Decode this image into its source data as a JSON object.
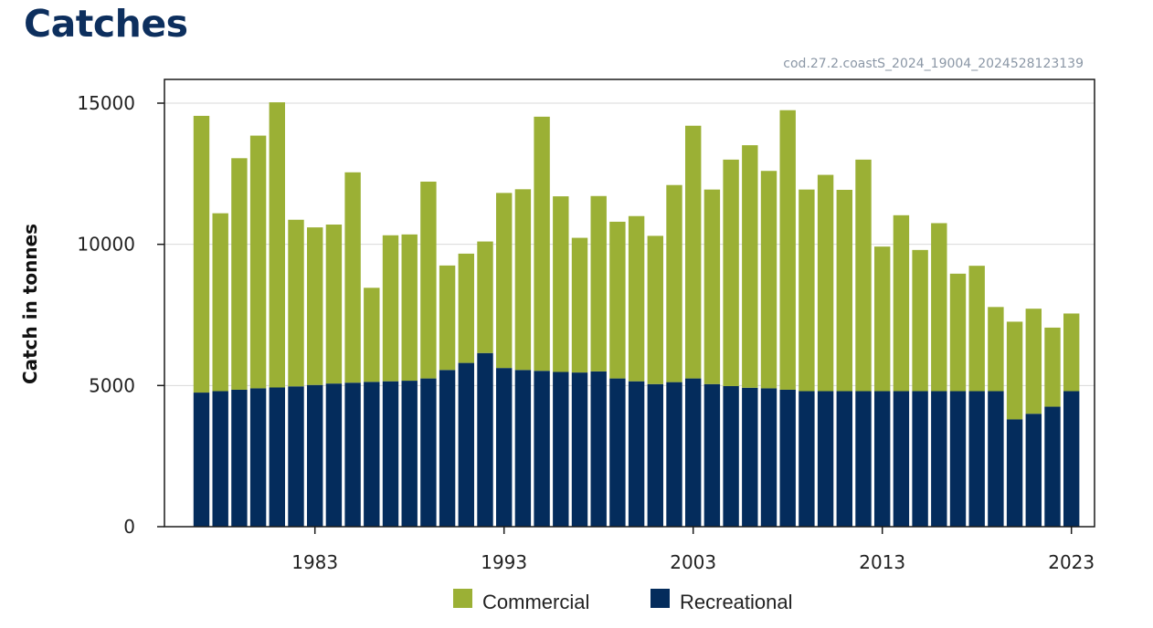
{
  "header": {
    "title": "Catches",
    "source_id": "cod.27.2.coastS_2024_19004_2024528123139"
  },
  "colors": {
    "commercial": "#9bb035",
    "recreational": "#042c5c",
    "title": "#0d2f5e",
    "grid": "#d9d9d9"
  },
  "chart_data": {
    "type": "bar",
    "stacked": true,
    "title": "",
    "xlabel": "",
    "ylabel": "Catch in tonnes",
    "ylim": [
      0,
      16000
    ],
    "yticks": [
      0,
      5000,
      10000,
      15000
    ],
    "xticks": [
      1983,
      1993,
      2003,
      2013,
      2023
    ],
    "grid": "horizontal",
    "legend_position": "bottom",
    "categories": [
      1977,
      1978,
      1979,
      1980,
      1981,
      1982,
      1983,
      1984,
      1985,
      1986,
      1987,
      1988,
      1989,
      1990,
      1991,
      1992,
      1993,
      1994,
      1995,
      1996,
      1997,
      1998,
      1999,
      2000,
      2001,
      2002,
      2003,
      2004,
      2005,
      2006,
      2007,
      2008,
      2009,
      2010,
      2011,
      2012,
      2013,
      2014,
      2015,
      2016,
      2017,
      2018,
      2019,
      2020,
      2021,
      2022,
      2023
    ],
    "series": [
      {
        "name": "Recreational",
        "values": [
          4750,
          4800,
          4850,
          4900,
          4930,
          4970,
          5020,
          5070,
          5100,
          5130,
          5150,
          5170,
          5250,
          5550,
          5800,
          6150,
          5620,
          5550,
          5520,
          5480,
          5460,
          5500,
          5250,
          5150,
          5050,
          5120,
          5250,
          5050,
          4980,
          4920,
          4900,
          4850,
          4800,
          4800,
          4800,
          4800,
          4800,
          4800,
          4800,
          4800,
          4800,
          4800,
          4800,
          3800,
          4000,
          4250,
          4800
        ]
      },
      {
        "name": "Commercial",
        "values": [
          9800,
          6300,
          8200,
          8950,
          10100,
          5900,
          5580,
          5630,
          7450,
          3330,
          5170,
          5180,
          6970,
          3700,
          3870,
          3950,
          6200,
          6400,
          9000,
          6220,
          4770,
          6210,
          5550,
          5850,
          5250,
          6980,
          8950,
          6890,
          8020,
          8590,
          7700,
          9900,
          7140,
          7660,
          7130,
          8200,
          5120,
          6230,
          5000,
          5950,
          4160,
          4440,
          2980,
          3460,
          3720,
          2800,
          2750
        ]
      }
    ]
  },
  "legend": [
    {
      "label": "Commercial",
      "color": "#9bb035"
    },
    {
      "label": "Recreational",
      "color": "#042c5c"
    }
  ]
}
